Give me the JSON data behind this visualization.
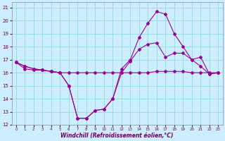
{
  "xlabel": "Windchill (Refroidissement éolien,°C)",
  "background_color": "#cceeff",
  "grid_color": "#99dddd",
  "line_color": "#990099",
  "xlim": [
    -0.5,
    23.5
  ],
  "ylim": [
    12,
    21.4
  ],
  "yticks": [
    12,
    13,
    14,
    15,
    16,
    17,
    18,
    19,
    20,
    21
  ],
  "xticks": [
    0,
    1,
    2,
    3,
    4,
    5,
    6,
    7,
    8,
    9,
    10,
    11,
    12,
    13,
    14,
    15,
    16,
    17,
    18,
    19,
    20,
    21,
    22,
    23
  ],
  "line1_x": [
    0,
    1,
    2,
    3,
    4,
    5,
    6,
    7,
    8,
    9,
    10,
    11,
    12,
    13,
    14,
    15,
    16,
    17,
    18,
    19,
    20,
    21,
    22,
    23
  ],
  "line1_y": [
    16.8,
    16.5,
    16.3,
    16.2,
    16.1,
    16.0,
    15.0,
    12.5,
    12.5,
    13.1,
    13.2,
    14.0,
    16.0,
    16.9,
    17.8,
    18.2,
    18.3,
    17.2,
    17.5,
    17.5,
    17.0,
    17.2,
    15.9,
    16.0
  ],
  "line2_x": [
    0,
    1,
    2,
    3,
    4,
    5,
    6,
    7,
    8,
    9,
    10,
    11,
    12,
    13,
    14,
    15,
    16,
    17,
    18,
    19,
    20,
    21,
    22,
    23
  ],
  "line2_y": [
    16.8,
    16.5,
    16.3,
    16.2,
    16.1,
    16.0,
    15.0,
    12.5,
    12.5,
    13.1,
    13.2,
    14.0,
    16.3,
    17.0,
    18.7,
    19.8,
    20.7,
    20.5,
    19.0,
    18.0,
    17.0,
    16.5,
    15.9,
    16.0
  ],
  "line3_x": [
    0,
    1,
    2,
    3,
    4,
    5,
    6,
    7,
    8,
    9,
    10,
    11,
    12,
    13,
    14,
    15,
    16,
    17,
    18,
    19,
    20,
    21,
    22,
    23
  ],
  "line3_y": [
    16.8,
    16.3,
    16.2,
    16.2,
    16.1,
    16.0,
    16.0,
    16.0,
    16.0,
    16.0,
    16.0,
    16.0,
    16.0,
    16.0,
    16.0,
    16.0,
    16.1,
    16.1,
    16.1,
    16.1,
    16.0,
    16.0,
    16.0,
    16.0
  ]
}
